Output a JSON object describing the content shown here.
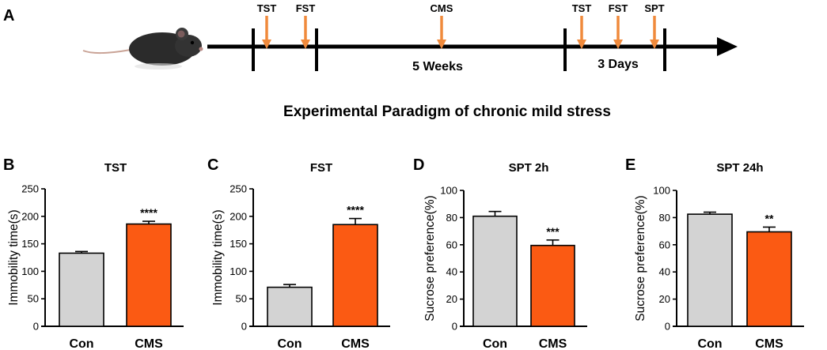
{
  "figure_title": "Experimental Paradigm of chronic mild stress",
  "panel_labels": [
    "A",
    "B",
    "C",
    "D",
    "E"
  ],
  "timeline": {
    "markers": [
      "TST",
      "FST",
      "CMS",
      "TST",
      "FST",
      "SPT"
    ],
    "periods": [
      "5 Weeks",
      "3 Days"
    ]
  },
  "colors": {
    "control": "#d3d3d3",
    "cms": "#fb5a13",
    "arrow": "#f08a3c",
    "axis": "#000000"
  },
  "chart_data": [
    {
      "type": "bar",
      "panel": "B",
      "title": "TST",
      "ylabel": "Immobility time(s)",
      "xlabel": "",
      "categories": [
        "Con",
        "CMS"
      ],
      "values": [
        133,
        186
      ],
      "errors": [
        3,
        5
      ],
      "significance": [
        "",
        "****"
      ],
      "ylim": [
        0,
        250
      ],
      "yticks": [
        0,
        50,
        100,
        150,
        200,
        250
      ]
    },
    {
      "type": "bar",
      "panel": "C",
      "title": "FST",
      "ylabel": "Immobility time(s)",
      "xlabel": "",
      "categories": [
        "Con",
        "CMS"
      ],
      "values": [
        71,
        185
      ],
      "errors": [
        5,
        11
      ],
      "significance": [
        "",
        "****"
      ],
      "ylim": [
        0,
        250
      ],
      "yticks": [
        0,
        50,
        100,
        150,
        200,
        250
      ]
    },
    {
      "type": "bar",
      "panel": "D",
      "title": "SPT  2h",
      "ylabel": "Sucrose preference(%)",
      "xlabel": "",
      "categories": [
        "Con",
        "CMS"
      ],
      "values": [
        81,
        59.5
      ],
      "errors": [
        3.5,
        4
      ],
      "significance": [
        "",
        "***"
      ],
      "ylim": [
        0,
        100
      ],
      "yticks": [
        0,
        20,
        40,
        60,
        80,
        100
      ]
    },
    {
      "type": "bar",
      "panel": "E",
      "title": "SPT 24h",
      "ylabel": "Sucrose preference(%)",
      "xlabel": "",
      "categories": [
        "Con",
        "CMS"
      ],
      "values": [
        82.5,
        69.5
      ],
      "errors": [
        1.5,
        3.5
      ],
      "significance": [
        "",
        "**"
      ],
      "ylim": [
        0,
        100
      ],
      "yticks": [
        0,
        20,
        40,
        60,
        80,
        100
      ]
    }
  ]
}
